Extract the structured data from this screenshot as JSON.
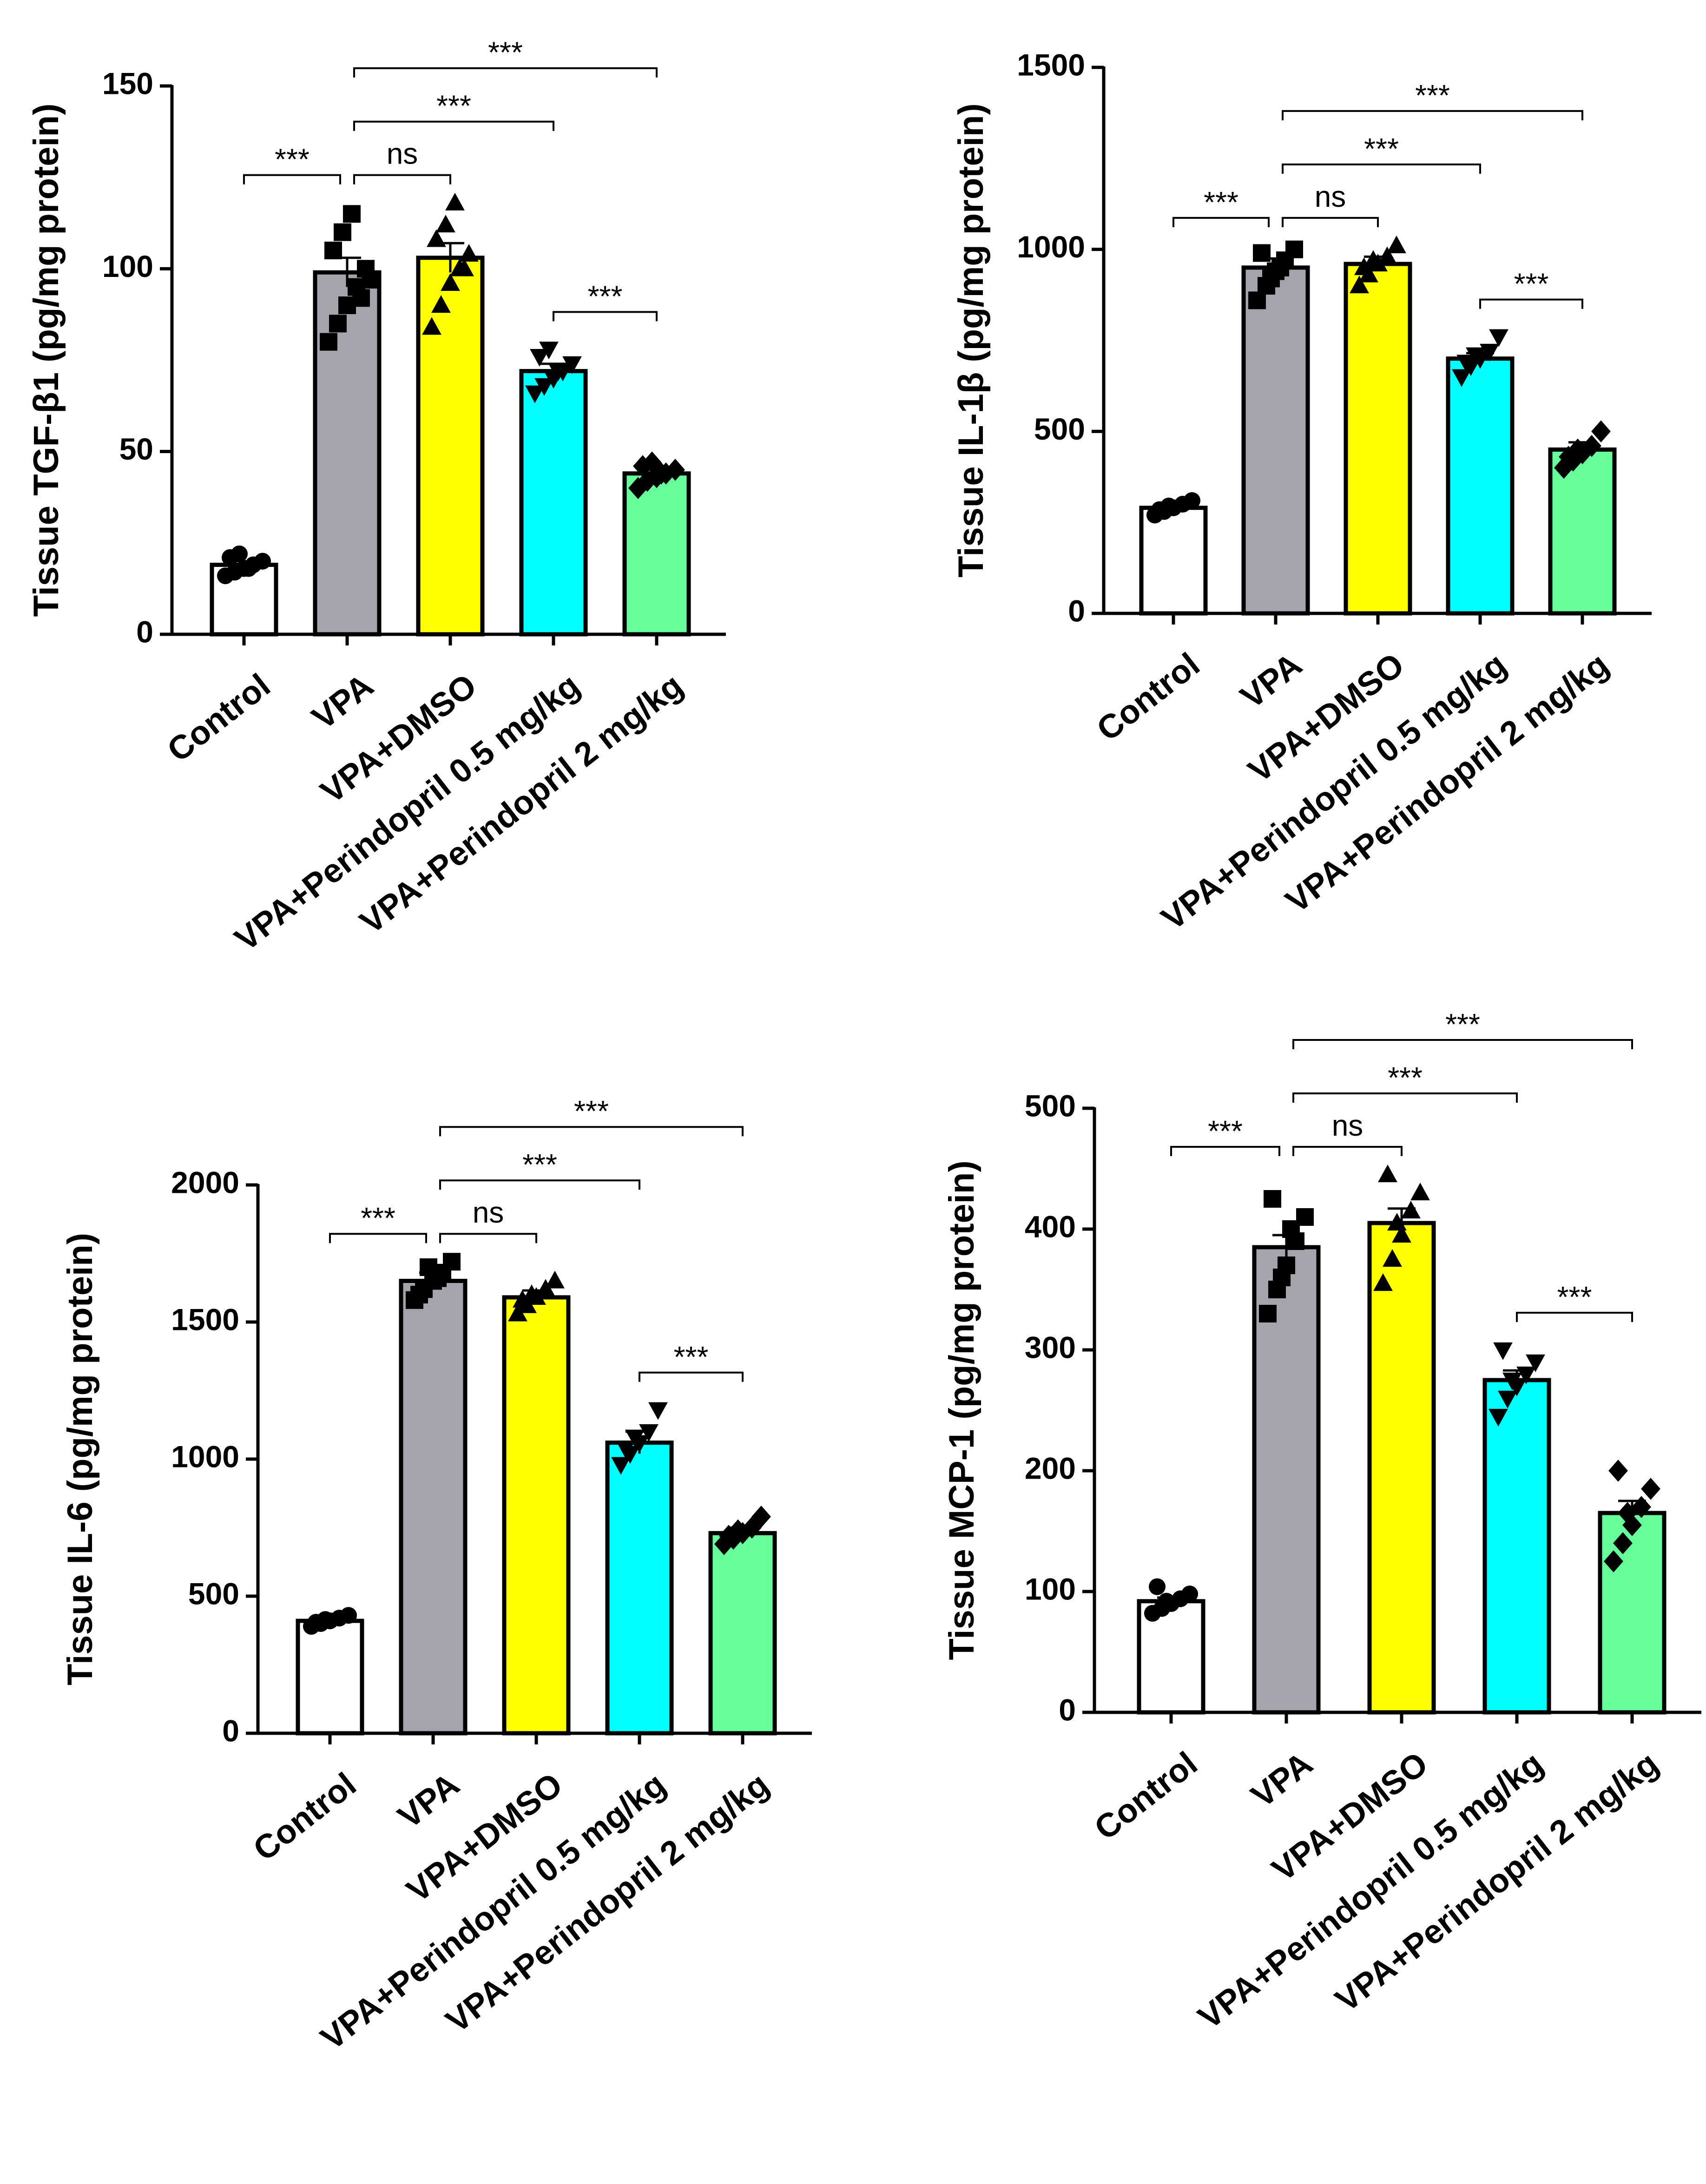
{
  "categories": [
    "Control",
    "VPA",
    "VPA+DMSO",
    "VPA+Perindopril 0.5 mg/kg",
    "VPA+Perindopril 2 mg/kg"
  ],
  "colors": {
    "Control": "#ffffff",
    "VPA": "#a5a3ab",
    "VPA+DMSO": "#ffff00",
    "VPA+Perindopril 0.5 mg/kg": "#00ffff",
    "VPA+Perindopril 2 mg/kg": "#66ff99"
  },
  "chart_data": [
    {
      "type": "bar",
      "ylabel": "Tissue TGF-β1 (pg/mg protein)",
      "ylim": [
        0,
        150
      ],
      "yticks": [
        0,
        50,
        100,
        150
      ],
      "categories": [
        "Control",
        "VPA",
        "VPA+DMSO",
        "VPA+Perindopril 0.5 mg/kg",
        "VPA+Perindopril 2 mg/kg"
      ],
      "values": [
        19,
        99,
        103,
        72,
        44
      ],
      "errors": [
        1,
        4,
        4,
        2,
        1
      ],
      "point_markers": [
        "circle",
        "square",
        "triangle",
        "triangle-down",
        "diamond"
      ],
      "points": [
        [
          16,
          17,
          18,
          19,
          20,
          21,
          22,
          18
        ],
        [
          80,
          85,
          90,
          95,
          100,
          105,
          110,
          115,
          92,
          97
        ],
        [
          84,
          90,
          96,
          100,
          104,
          108,
          112,
          118,
          100
        ],
        [
          66,
          68,
          70,
          72,
          74,
          76,
          78,
          72
        ],
        [
          40,
          42,
          43,
          44,
          45,
          46,
          47,
          44
        ]
      ],
      "comparisons": [
        {
          "from": 0,
          "to": 1,
          "label": "***",
          "level": 0
        },
        {
          "from": 1,
          "to": 2,
          "label": "ns",
          "level": 0
        },
        {
          "from": 1,
          "to": 3,
          "label": "***",
          "level": 1
        },
        {
          "from": 1,
          "to": 4,
          "label": "***",
          "level": 2
        },
        {
          "from": 3,
          "to": 4,
          "label": "***",
          "level": -1
        }
      ]
    },
    {
      "type": "bar",
      "ylabel": "Tissue IL-1β (pg/mg protein)",
      "ylim": [
        0,
        1500
      ],
      "yticks": [
        0,
        500,
        1000,
        1500
      ],
      "categories": [
        "Control",
        "VPA",
        "VPA+DMSO",
        "VPA+Perindopril 0.5 mg/kg",
        "VPA+Perindopril 2 mg/kg"
      ],
      "values": [
        290,
        950,
        960,
        700,
        450
      ],
      "errors": [
        10,
        25,
        20,
        15,
        20
      ],
      "point_markers": [
        "circle",
        "square",
        "triangle",
        "triangle-down",
        "diamond"
      ],
      "points": [
        [
          270,
          280,
          290,
          300,
          310,
          285,
          295
        ],
        [
          860,
          900,
          940,
          970,
          1000,
          990,
          920,
          950
        ],
        [
          900,
          930,
          960,
          980,
          1010,
          950,
          970
        ],
        [
          650,
          680,
          700,
          720,
          760,
          690,
          710
        ],
        [
          400,
          420,
          440,
          460,
          500,
          430,
          450
        ]
      ],
      "comparisons": [
        {
          "from": 0,
          "to": 1,
          "label": "***",
          "level": 0
        },
        {
          "from": 1,
          "to": 2,
          "label": "ns",
          "level": 0
        },
        {
          "from": 1,
          "to": 3,
          "label": "***",
          "level": 1
        },
        {
          "from": 1,
          "to": 4,
          "label": "***",
          "level": 2
        },
        {
          "from": 3,
          "to": 4,
          "label": "***",
          "level": -1
        }
      ]
    },
    {
      "type": "bar",
      "ylabel": "Tissue IL-6 (pg/mg protein)",
      "ylim": [
        0,
        2000
      ],
      "yticks": [
        0,
        500,
        1000,
        1500,
        2000
      ],
      "categories": [
        "Control",
        "VPA",
        "VPA+DMSO",
        "VPA+Perindopril 0.5 mg/kg",
        "VPA+Perindopril 2 mg/kg"
      ],
      "values": [
        410,
        1650,
        1590,
        1060,
        730
      ],
      "errors": [
        10,
        30,
        25,
        40,
        20
      ],
      "point_markers": [
        "circle",
        "square",
        "triangle",
        "triangle-down",
        "diamond"
      ],
      "points": [
        [
          390,
          400,
          410,
          420,
          430,
          405,
          415
        ],
        [
          1580,
          1620,
          1650,
          1680,
          1720,
          1600,
          1700,
          1660
        ],
        [
          1530,
          1560,
          1590,
          1620,
          1650,
          1580,
          1600
        ],
        [
          980,
          1020,
          1060,
          1100,
          1180,
          1040,
          1080
        ],
        [
          690,
          710,
          730,
          750,
          790,
          720,
          740
        ]
      ],
      "comparisons": [
        {
          "from": 0,
          "to": 1,
          "label": "***",
          "level": 0
        },
        {
          "from": 1,
          "to": 2,
          "label": "ns",
          "level": 0
        },
        {
          "from": 1,
          "to": 3,
          "label": "***",
          "level": 1
        },
        {
          "from": 1,
          "to": 4,
          "label": "***",
          "level": 2
        },
        {
          "from": 3,
          "to": 4,
          "label": "***",
          "level": -1
        }
      ]
    },
    {
      "type": "bar",
      "ylabel": "Tissue MCP-1 (pg/mg protein)",
      "ylim": [
        0,
        500
      ],
      "yticks": [
        0,
        100,
        200,
        300,
        400,
        500
      ],
      "categories": [
        "Control",
        "VPA",
        "VPA+DMSO",
        "VPA+Perindopril 0.5 mg/kg",
        "VPA+Perindopril 2 mg/kg"
      ],
      "values": [
        92,
        385,
        405,
        275,
        165
      ],
      "errors": [
        3,
        10,
        12,
        8,
        10
      ],
      "point_markers": [
        "circle",
        "square",
        "triangle",
        "triangle-down",
        "diamond"
      ],
      "points": [
        [
          82,
          86,
          90,
          94,
          98,
          104,
          92
        ],
        [
          330,
          350,
          370,
          390,
          410,
          425,
          360,
          400
        ],
        [
          355,
          375,
          395,
          415,
          430,
          445,
          405
        ],
        [
          245,
          260,
          270,
          280,
          290,
          300,
          275
        ],
        [
          125,
          140,
          155,
          170,
          185,
          200,
          165
        ]
      ],
      "comparisons": [
        {
          "from": 0,
          "to": 1,
          "label": "***",
          "level": 0
        },
        {
          "from": 1,
          "to": 2,
          "label": "ns",
          "level": 0
        },
        {
          "from": 1,
          "to": 3,
          "label": "***",
          "level": 1
        },
        {
          "from": 1,
          "to": 4,
          "label": "***",
          "level": 2
        },
        {
          "from": 3,
          "to": 4,
          "label": "***",
          "level": -1
        }
      ]
    }
  ]
}
